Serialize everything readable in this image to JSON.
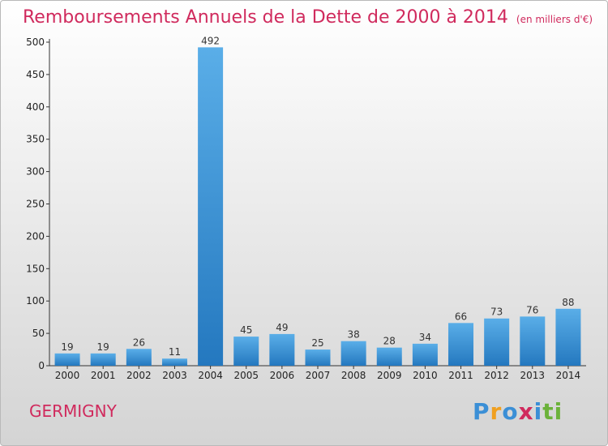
{
  "title": "Remboursements Annuels de la Dette de 2000 à 2014",
  "unit_note": "(en milliers d'€)",
  "location": "GERMIGNY",
  "logo": {
    "letters": [
      "P",
      "r",
      "o",
      "x",
      "i",
      "t",
      "i"
    ],
    "colors": [
      "#3b8fd6",
      "#f0a020",
      "#3b8fd6",
      "#d02a5d",
      "#3b8fd6",
      "#6cb23a",
      "#6cb23a"
    ]
  },
  "colors": {
    "accent": "#d02a5d",
    "bar_top": "#5aaee8",
    "bar_bottom": "#2478bf"
  },
  "chart_data": {
    "type": "bar",
    "title": "Remboursements Annuels de la Dette de 2000 à 2014",
    "categories": [
      "2000",
      "2001",
      "2002",
      "2003",
      "2004",
      "2005",
      "2006",
      "2007",
      "2008",
      "2009",
      "2010",
      "2011",
      "2012",
      "2013",
      "2014"
    ],
    "values": [
      19,
      19,
      26,
      11,
      492,
      45,
      49,
      25,
      38,
      28,
      34,
      66,
      73,
      76,
      88
    ],
    "ylim": [
      0,
      500
    ],
    "yticks": [
      0,
      50,
      100,
      150,
      200,
      250,
      300,
      350,
      400,
      450,
      500
    ],
    "grid": false
  }
}
